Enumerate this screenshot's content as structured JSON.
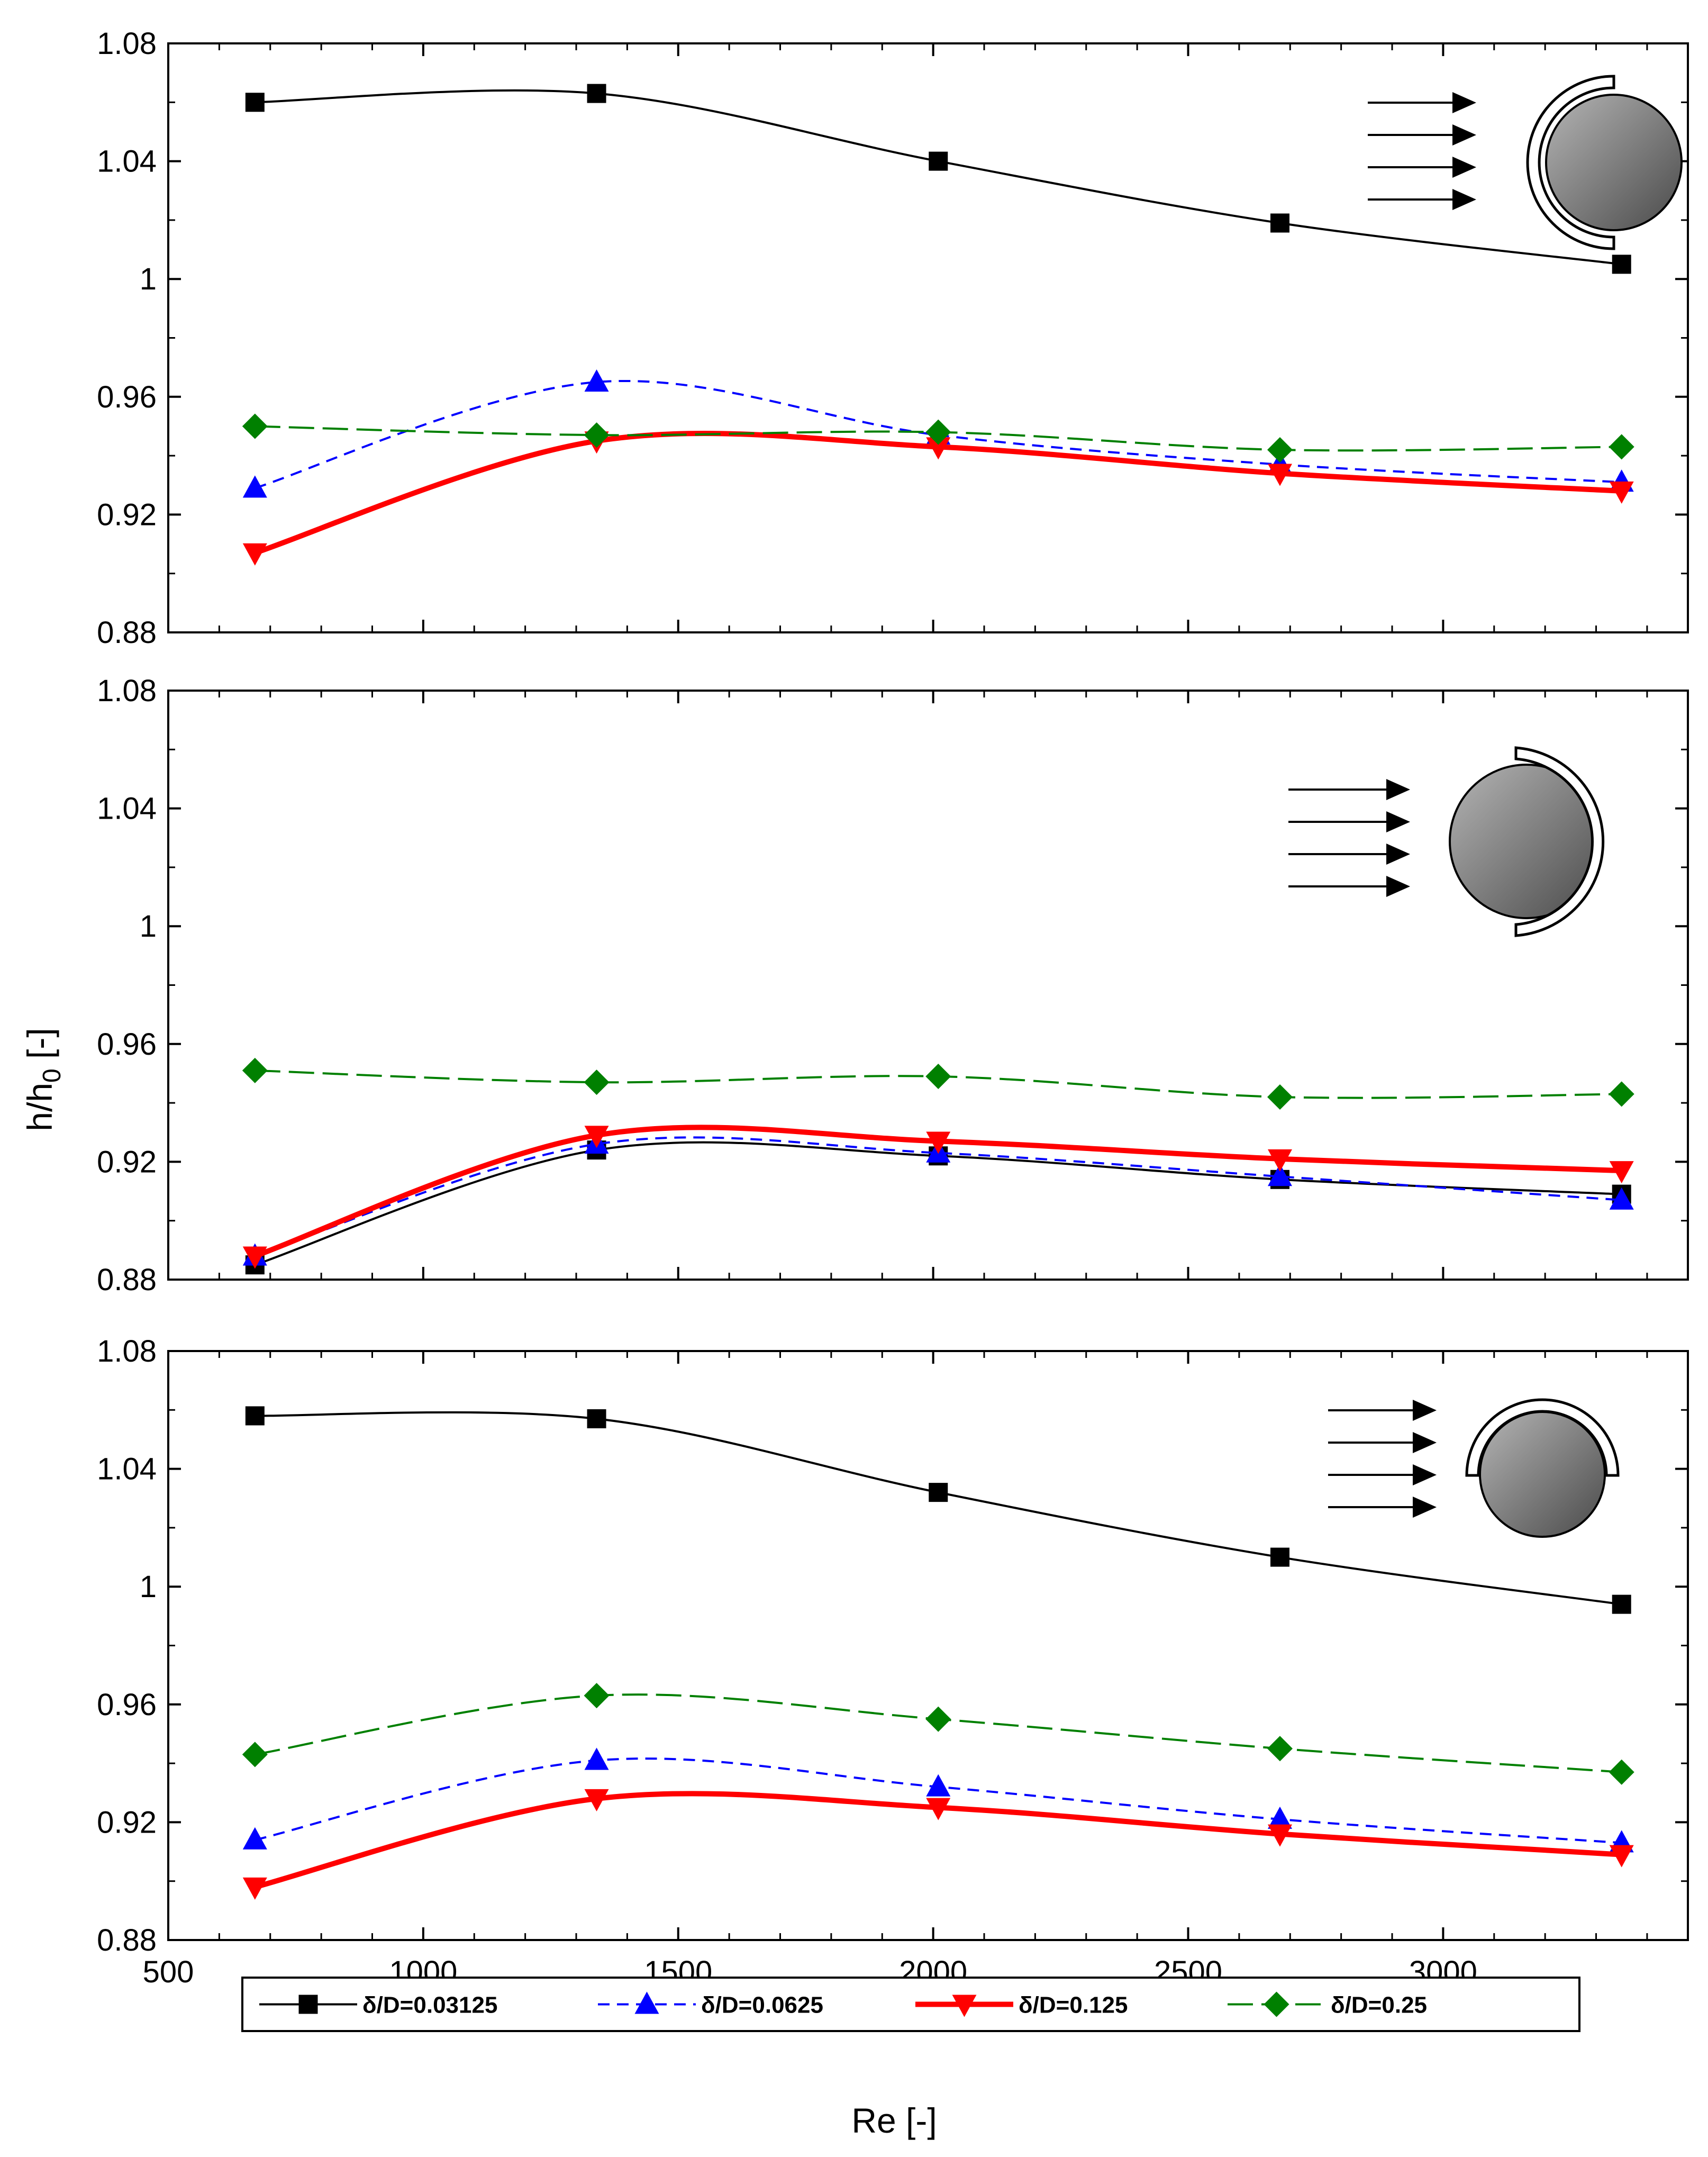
{
  "chart_data": {
    "type": "line",
    "title": "",
    "xlabel": "Re [-]",
    "ylabel": "h/h",
    "ylabel_sub": "0",
    "ylabel_suffix": " [-]",
    "xlim": [
      500,
      3480
    ],
    "ylim": [
      0.88,
      1.08
    ],
    "x_ticks": [
      500,
      1000,
      1500,
      2000,
      2500,
      3000
    ],
    "x_tick_labels": [
      "500",
      "1000",
      "1500",
      "2000",
      "2500",
      "3000"
    ],
    "y_ticks": [
      0.88,
      0.92,
      0.96,
      1.0,
      1.04,
      1.08
    ],
    "y_tick_labels": [
      "0.88",
      "0.92",
      "0.96",
      "1",
      "1.04",
      "1.08"
    ],
    "x": [
      670,
      1340,
      2010,
      2680,
      3350
    ],
    "legend": [
      {
        "key": "s1",
        "label": "δ/D=0.03125",
        "color": "#000000",
        "marker": "square",
        "dash": "solid"
      },
      {
        "key": "s2",
        "label": "δ/D=0.0625",
        "color": "#0000ff",
        "marker": "triangle-up",
        "dash": "dashed"
      },
      {
        "key": "s3",
        "label": "δ/D=0.125",
        "color": "#ff0000",
        "marker": "triangle-down",
        "dash": "solid-thick"
      },
      {
        "key": "s4",
        "label": "δ/D=0.25",
        "color": "#008000",
        "marker": "diamond",
        "dash": "long-dash"
      }
    ],
    "panels": [
      {
        "name": "panel-top",
        "inset": "front-cover",
        "series": [
          {
            "key": "s1",
            "values": [
              1.06,
              1.063,
              1.04,
              1.019,
              1.005
            ]
          },
          {
            "key": "s2",
            "values": [
              0.929,
              0.965,
              0.947,
              0.937,
              0.931
            ]
          },
          {
            "key": "s3",
            "values": [
              0.907,
              0.945,
              0.943,
              0.934,
              0.928
            ]
          },
          {
            "key": "s4",
            "values": [
              0.95,
              0.947,
              0.948,
              0.942,
              0.943
            ]
          }
        ]
      },
      {
        "name": "panel-middle",
        "inset": "rear-cover",
        "series": [
          {
            "key": "s1",
            "values": [
              0.885,
              0.924,
              0.922,
              0.914,
              0.909
            ]
          },
          {
            "key": "s2",
            "values": [
              0.888,
              0.926,
              0.923,
              0.915,
              0.907
            ]
          },
          {
            "key": "s3",
            "values": [
              0.888,
              0.929,
              0.927,
              0.921,
              0.917
            ]
          },
          {
            "key": "s4",
            "values": [
              0.951,
              0.947,
              0.949,
              0.942,
              0.943
            ]
          }
        ]
      },
      {
        "name": "panel-bottom",
        "inset": "top-cover",
        "series": [
          {
            "key": "s1",
            "values": [
              1.058,
              1.057,
              1.032,
              1.01,
              0.994
            ]
          },
          {
            "key": "s2",
            "values": [
              0.914,
              0.941,
              0.932,
              0.921,
              0.913
            ]
          },
          {
            "key": "s3",
            "values": [
              0.898,
              0.928,
              0.925,
              0.916,
              0.909
            ]
          },
          {
            "key": "s4",
            "values": [
              0.943,
              0.963,
              0.955,
              0.945,
              0.937
            ]
          }
        ]
      }
    ]
  }
}
